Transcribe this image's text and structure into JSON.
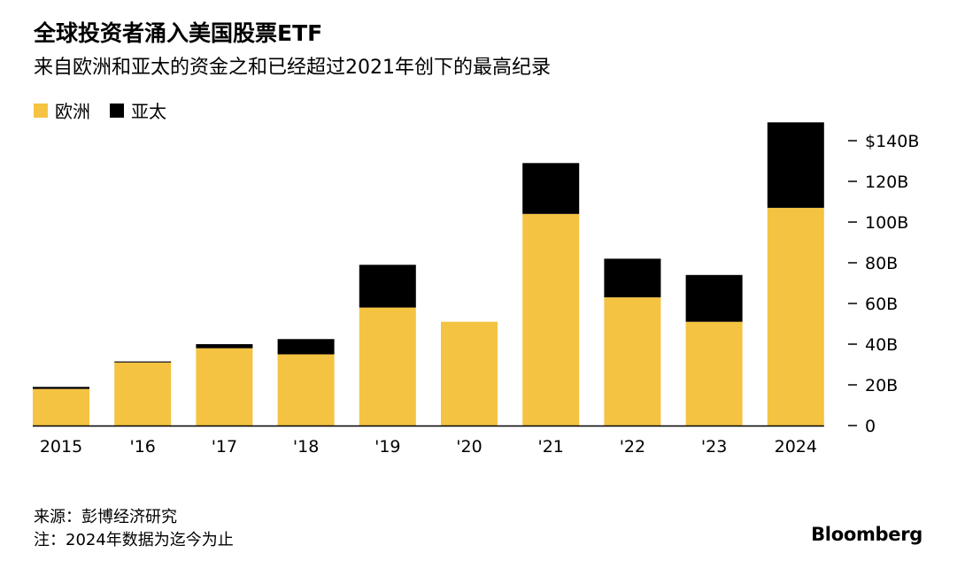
{
  "title": "全球投资者涌入美国股票ETF",
  "subtitle": "来自欧洲和亚太的资金之和已经超过2021年创下的最高纪录",
  "source": "来源：彭博经济研究",
  "footnote": "注：2024年数据为迄今为止",
  "brand": "Bloomberg",
  "colors": {
    "europe": "#F5C342",
    "apac": "#000000",
    "axis": "#000000"
  },
  "chart_data": {
    "type": "bar",
    "stacked": true,
    "categories": [
      "2015",
      "'16",
      "'17",
      "'18",
      "'19",
      "'20",
      "'21",
      "'22",
      "'23",
      "2024"
    ],
    "series": [
      {
        "name": "欧洲",
        "values": [
          18,
          31,
          38,
          35,
          58,
          51,
          104,
          63,
          51,
          107
        ]
      },
      {
        "name": "亚太",
        "values": [
          1,
          0.5,
          2,
          7.5,
          21,
          0,
          25,
          19,
          23,
          42
        ]
      }
    ],
    "ylim": [
      0,
      150
    ],
    "yticks": [
      0,
      20,
      40,
      60,
      80,
      100,
      120,
      140
    ],
    "ytick_labels": [
      "0",
      "20B",
      "40B",
      "60B",
      "80B",
      "100B",
      "120B",
      "$140B"
    ],
    "yaxis_position": "right",
    "legend_position": "top-left",
    "grid": false
  }
}
